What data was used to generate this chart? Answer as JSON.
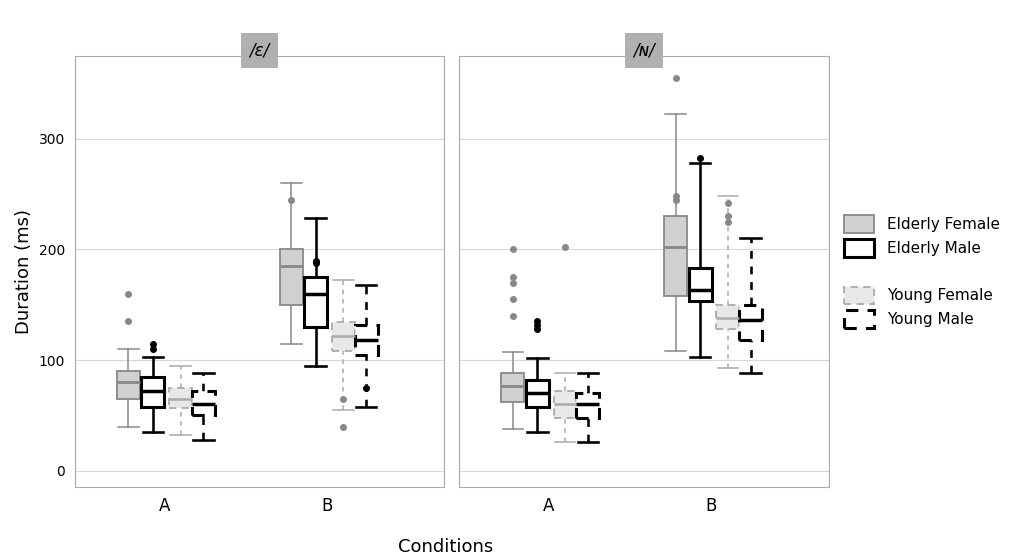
{
  "panel_titles": [
    "/ε/",
    "/ɴ/"
  ],
  "conditions": [
    "A",
    "B"
  ],
  "groups": [
    "Elderly Female",
    "Elderly Male",
    "Young Female",
    "Young Male"
  ],
  "ylabel": "Duration (ms)",
  "xlabel": "Conditions",
  "ylim": [
    -15,
    375
  ],
  "yticks": [
    0,
    100,
    200,
    300
  ],
  "panel1": {
    "A": {
      "Elderly Female": {
        "q1": 65,
        "median": 80,
        "q3": 90,
        "whislo": 40,
        "whishi": 110,
        "fliers": [
          [
            160,
            "gray"
          ],
          [
            135,
            "gray"
          ]
        ]
      },
      "Elderly Male": {
        "q1": 58,
        "median": 72,
        "q3": 85,
        "whislo": 35,
        "whishi": 103,
        "fliers": [
          [
            115,
            "black"
          ],
          [
            110,
            "black"
          ]
        ]
      },
      "Young Female": {
        "q1": 57,
        "median": 65,
        "q3": 75,
        "whislo": 32,
        "whishi": 95,
        "fliers": []
      },
      "Young Male": {
        "q1": 50,
        "median": 60,
        "q3": 72,
        "whislo": 28,
        "whishi": 88,
        "fliers": []
      }
    },
    "B": {
      "Elderly Female": {
        "q1": 150,
        "median": 185,
        "q3": 200,
        "whislo": 115,
        "whishi": 260,
        "fliers": [
          [
            245,
            "gray"
          ]
        ]
      },
      "Elderly Male": {
        "q1": 130,
        "median": 160,
        "q3": 175,
        "whislo": 95,
        "whishi": 228,
        "fliers": [
          [
            190,
            "black"
          ],
          [
            188,
            "black"
          ]
        ]
      },
      "Young Female": {
        "q1": 108,
        "median": 122,
        "q3": 134,
        "whislo": 55,
        "whishi": 172,
        "fliers": [
          [
            40,
            "gray"
          ],
          [
            65,
            "gray"
          ]
        ]
      },
      "Young Male": {
        "q1": 105,
        "median": 118,
        "q3": 132,
        "whislo": 58,
        "whishi": 168,
        "fliers": [
          [
            75,
            "black"
          ]
        ]
      }
    }
  },
  "panel2": {
    "A": {
      "Elderly Female": {
        "q1": 62,
        "median": 77,
        "q3": 88,
        "whislo": 38,
        "whishi": 107,
        "fliers": [
          [
            200,
            "gray"
          ],
          [
            175,
            "gray"
          ],
          [
            170,
            "gray"
          ],
          [
            155,
            "gray"
          ],
          [
            140,
            "gray"
          ]
        ]
      },
      "Elderly Male": {
        "q1": 58,
        "median": 70,
        "q3": 82,
        "whislo": 35,
        "whishi": 102,
        "fliers": [
          [
            135,
            "black"
          ],
          [
            132,
            "black"
          ],
          [
            128,
            "black"
          ]
        ]
      },
      "Young Female": {
        "q1": 48,
        "median": 60,
        "q3": 72,
        "whislo": 26,
        "whishi": 88,
        "fliers": [
          [
            202,
            "gray"
          ]
        ]
      },
      "Young Male": {
        "q1": 48,
        "median": 60,
        "q3": 70,
        "whislo": 26,
        "whishi": 88,
        "fliers": []
      }
    },
    "B": {
      "Elderly Female": {
        "q1": 158,
        "median": 202,
        "q3": 230,
        "whislo": 108,
        "whishi": 322,
        "fliers": [
          [
            355,
            "gray"
          ],
          [
            248,
            "gray"
          ],
          [
            245,
            "gray"
          ]
        ]
      },
      "Elderly Male": {
        "q1": 153,
        "median": 163,
        "q3": 183,
        "whislo": 103,
        "whishi": 278,
        "fliers": [
          [
            283,
            "black"
          ]
        ]
      },
      "Young Female": {
        "q1": 128,
        "median": 138,
        "q3": 150,
        "whislo": 93,
        "whishi": 248,
        "fliers": [
          [
            242,
            "gray"
          ],
          [
            230,
            "gray"
          ],
          [
            225,
            "gray"
          ]
        ]
      },
      "Young Male": {
        "q1": 118,
        "median": 136,
        "q3": 150,
        "whislo": 88,
        "whishi": 210,
        "fliers": []
      }
    }
  },
  "group_offsets": {
    "Elderly Female": -0.22,
    "Elderly Male": -0.07,
    "Young Female": 0.1,
    "Young Male": 0.24
  },
  "box_width": 0.14,
  "panel_label_bg": "#b0b0b0",
  "background_color": "#ffffff",
  "grid_color": "#d8d8d8"
}
